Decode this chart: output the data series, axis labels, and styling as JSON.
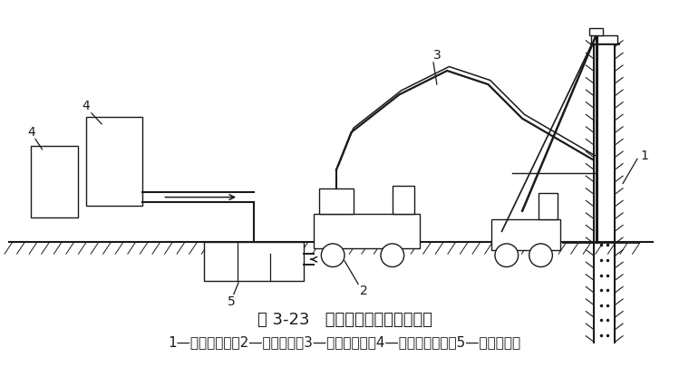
{
  "title": "图 3-23   钻孔压浆灌注桩工艺流程",
  "caption": "1—长螺栓钻机；2—高压泵车；3—高压输浆管；4—水泥浆搅拌桶；5—灰浆过滤池",
  "title_fontsize": 13,
  "caption_fontsize": 11,
  "bg_color": "#ffffff",
  "line_color": "#1a1a1a",
  "fig_width": 7.6,
  "fig_height": 4.05,
  "dpi": 100
}
